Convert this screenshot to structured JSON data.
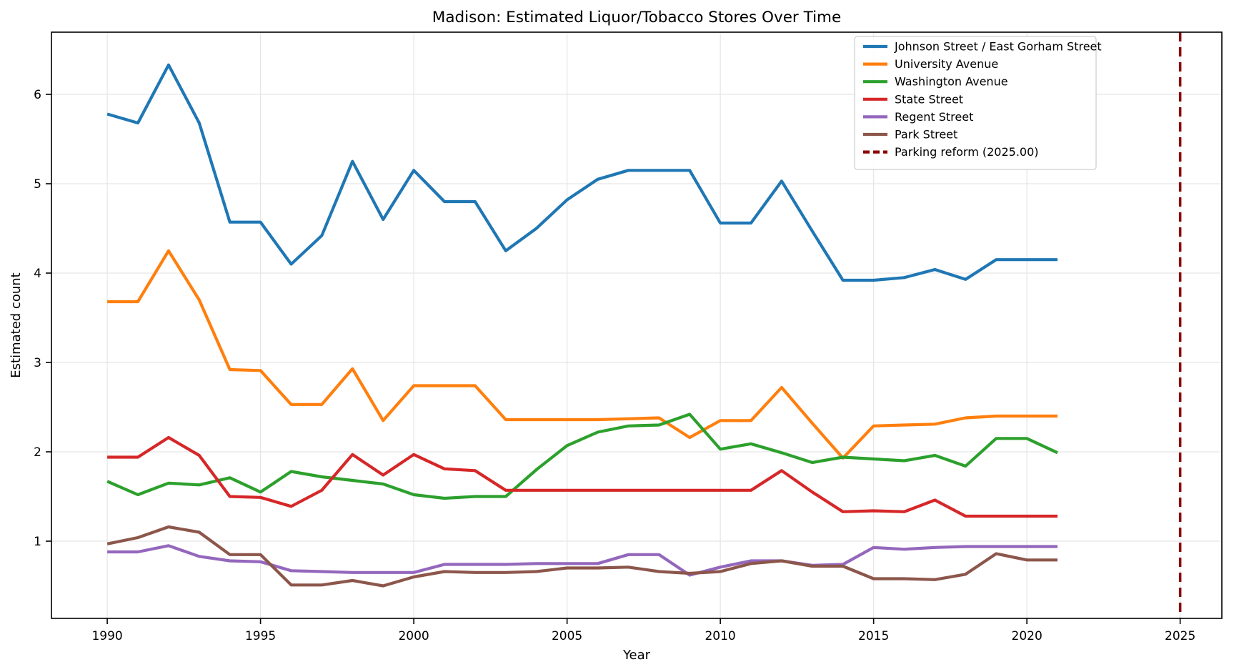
{
  "chart_data": {
    "type": "line",
    "title": "Madison: Estimated Liquor/Tobacco Stores Over Time",
    "xlabel": "Year",
    "ylabel": "Estimated count",
    "grid": true,
    "legend_position": "upper right",
    "xlim": [
      1988.18,
      2026.36
    ],
    "ylim": [
      0.136,
      6.696
    ],
    "x_ticks": [
      1990,
      1995,
      2000,
      2005,
      2010,
      2015,
      2020,
      2025
    ],
    "y_ticks": [
      1,
      2,
      3,
      4,
      5,
      6
    ],
    "x": [
      1990,
      1991,
      1992,
      1993,
      1994,
      1995,
      1996,
      1997,
      1998,
      1999,
      2000,
      2001,
      2002,
      2003,
      2004,
      2005,
      2006,
      2007,
      2008,
      2009,
      2010,
      2011,
      2012,
      2013,
      2014,
      2015,
      2016,
      2017,
      2018,
      2019,
      2020,
      2021
    ],
    "series": [
      {
        "name": "Johnson Street / East Gorham Street",
        "color": "#1f77b4",
        "values": [
          5.78,
          5.68,
          6.33,
          5.68,
          4.57,
          4.57,
          4.1,
          4.42,
          5.25,
          4.6,
          5.15,
          4.8,
          4.8,
          4.25,
          4.5,
          4.82,
          5.05,
          5.15,
          5.15,
          5.15,
          4.56,
          4.56,
          5.03,
          4.47,
          3.92,
          3.92,
          3.95,
          4.04,
          3.93,
          4.15,
          4.15,
          4.15
        ]
      },
      {
        "name": "University Avenue",
        "color": "#ff7f0e",
        "values": [
          3.68,
          3.68,
          4.25,
          3.7,
          2.92,
          2.91,
          2.53,
          2.53,
          2.93,
          2.35,
          2.74,
          2.74,
          2.74,
          2.36,
          2.36,
          2.36,
          2.36,
          2.37,
          2.38,
          2.16,
          2.35,
          2.35,
          2.72,
          2.32,
          1.93,
          2.29,
          2.3,
          2.31,
          2.38,
          2.4,
          2.4,
          2.4
        ]
      },
      {
        "name": "Washington Avenue",
        "color": "#2ca02c",
        "values": [
          1.67,
          1.52,
          1.65,
          1.63,
          1.71,
          1.55,
          1.78,
          1.72,
          1.68,
          1.64,
          1.52,
          1.48,
          1.5,
          1.5,
          1.8,
          2.07,
          2.22,
          2.29,
          2.3,
          2.42,
          2.03,
          2.09,
          1.99,
          1.88,
          1.94,
          1.92,
          1.9,
          1.96,
          1.84,
          2.15,
          2.15,
          1.99
        ]
      },
      {
        "name": "State Street",
        "color": "#d62728",
        "values": [
          1.94,
          1.94,
          2.16,
          1.96,
          1.5,
          1.49,
          1.39,
          1.57,
          1.97,
          1.74,
          1.97,
          1.81,
          1.79,
          1.57,
          1.57,
          1.57,
          1.57,
          1.57,
          1.57,
          1.57,
          1.57,
          1.57,
          1.79,
          1.55,
          1.33,
          1.34,
          1.33,
          1.46,
          1.28,
          1.28,
          1.28,
          1.28
        ]
      },
      {
        "name": "Regent Street",
        "color": "#9467bd",
        "values": [
          0.88,
          0.88,
          0.95,
          0.83,
          0.78,
          0.77,
          0.67,
          0.66,
          0.65,
          0.65,
          0.65,
          0.74,
          0.74,
          0.74,
          0.75,
          0.75,
          0.75,
          0.85,
          0.85,
          0.62,
          0.71,
          0.78,
          0.78,
          0.73,
          0.74,
          0.93,
          0.91,
          0.93,
          0.94,
          0.94,
          0.94,
          0.94
        ]
      },
      {
        "name": "Park Street",
        "color": "#8c564b",
        "values": [
          0.97,
          1.04,
          1.16,
          1.1,
          0.85,
          0.85,
          0.51,
          0.51,
          0.56,
          0.5,
          0.6,
          0.66,
          0.65,
          0.65,
          0.66,
          0.7,
          0.7,
          0.71,
          0.66,
          0.64,
          0.66,
          0.75,
          0.78,
          0.72,
          0.72,
          0.58,
          0.58,
          0.57,
          0.63,
          0.86,
          0.79,
          0.79
        ]
      }
    ],
    "vline": {
      "label": "Parking reform (2025.00)",
      "x": 2025,
      "color": "#8b0000",
      "style": "dashed"
    }
  }
}
